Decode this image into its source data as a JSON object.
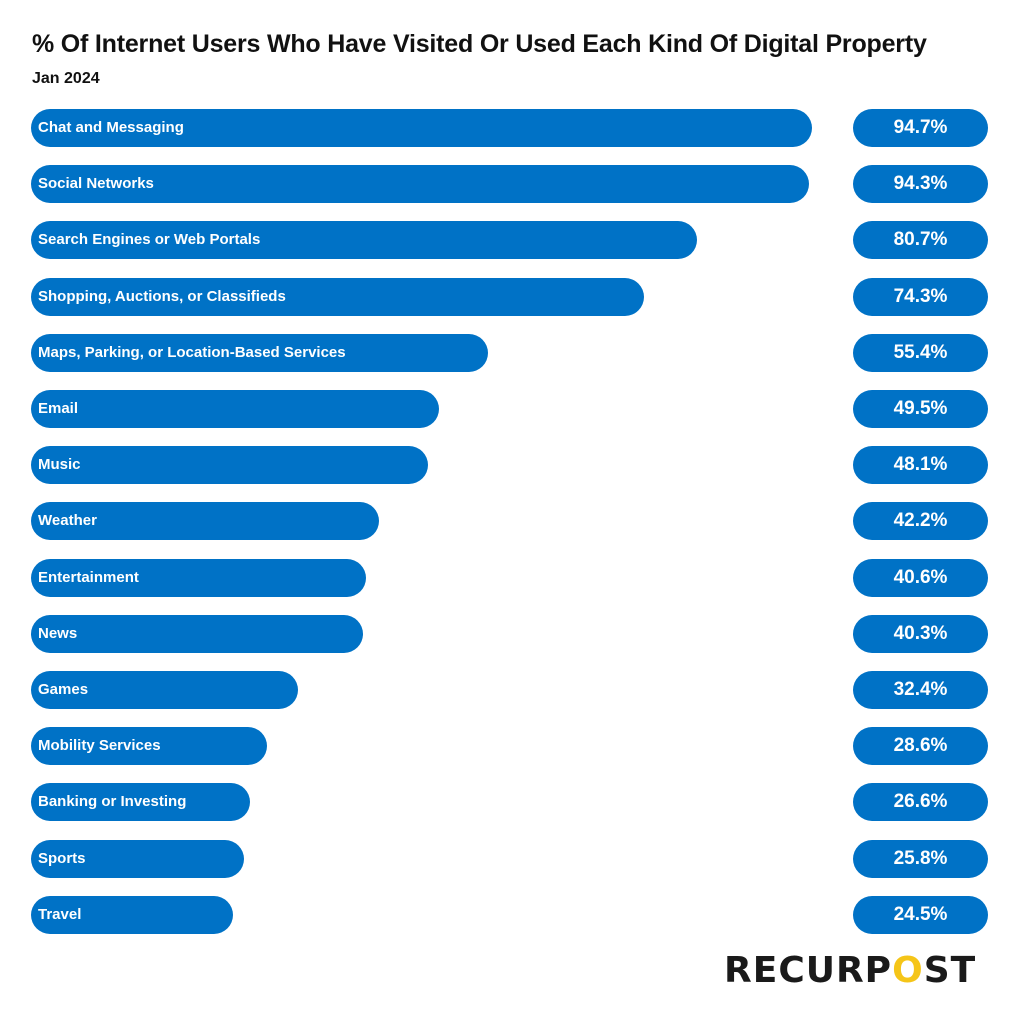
{
  "chart_data": {
    "type": "bar",
    "orientation": "horizontal",
    "title": "% Of Internet Users Who Have Visited Or Used Each Kind Of Digital Property",
    "subtitle": "Jan 2024",
    "categories": [
      "Chat and Messaging",
      "Social Networks",
      "Search Engines or Web Portals",
      "Shopping, Auctions, or Classifieds",
      "Maps, Parking, or Location-Based Services",
      "Email",
      "Music",
      "Weather",
      "Entertainment",
      "News",
      "Games",
      "Mobility Services",
      "Banking or Investing",
      "Sports",
      "Travel"
    ],
    "values": [
      94.7,
      94.3,
      80.7,
      74.3,
      55.4,
      49.5,
      48.1,
      42.2,
      40.6,
      40.3,
      32.4,
      28.6,
      26.6,
      25.8,
      24.5
    ],
    "labels": [
      "94.7%",
      "94.3%",
      "80.7%",
      "74.3%",
      "55.4%",
      "49.5%",
      "48.1%",
      "42.2%",
      "40.6%",
      "40.3%",
      "32.4%",
      "28.6%",
      "26.6%",
      "25.8%",
      "24.5%"
    ],
    "unit": "%",
    "grid": false,
    "color": "#0072C6"
  },
  "logo": {
    "text": "RECURPOST",
    "accent_color": "#F5C518"
  }
}
